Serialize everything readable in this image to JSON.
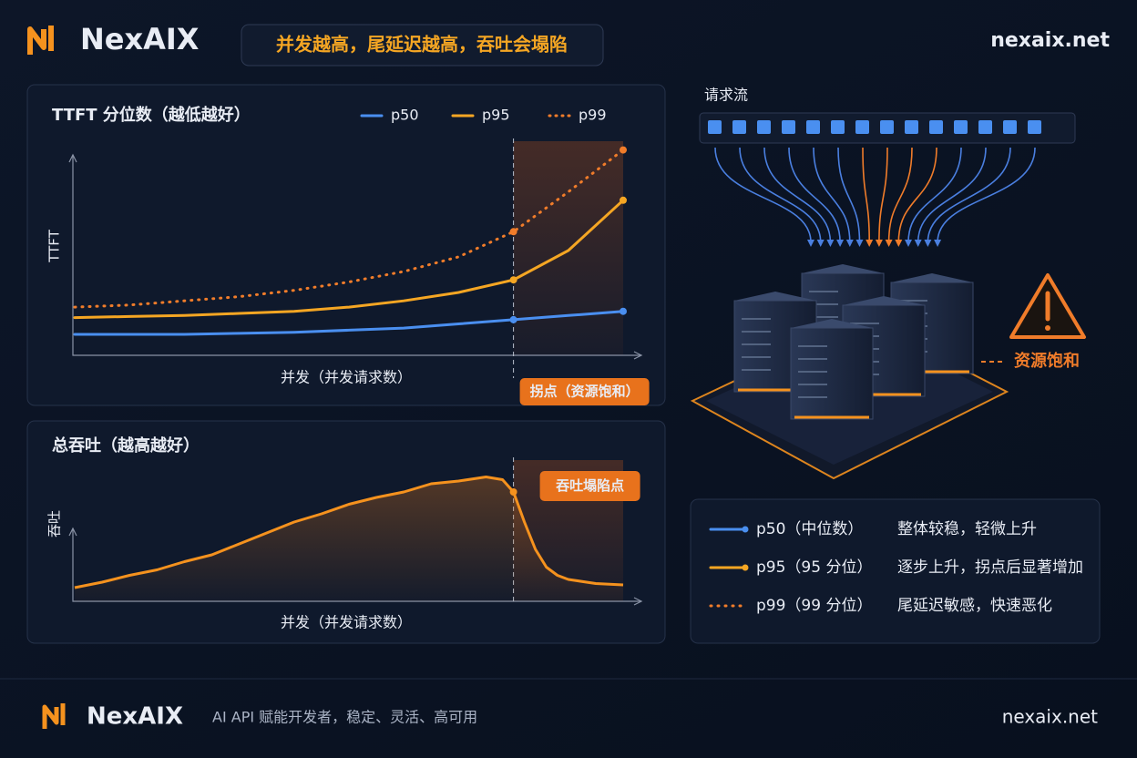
{
  "header": {
    "brand": "NexAIX",
    "headline": "并发越高，尾延迟越高，吞吐会塌陷",
    "site": "nexaix.net"
  },
  "chart_data": [
    {
      "type": "line",
      "title": "TTFT 分位数（越低越好）",
      "x_label": "并发（并发请求数）",
      "y_label": "TTFT",
      "x": [
        0,
        10,
        20,
        30,
        40,
        50,
        60,
        70,
        80,
        90,
        100
      ],
      "xlim": [
        0,
        100
      ],
      "ylim": [
        0,
        100
      ],
      "series": [
        {
          "name": "p50",
          "color": "#4a8ff0",
          "style": "solid",
          "values": [
            10,
            10,
            10,
            10.5,
            11,
            12,
            13,
            15,
            17,
            19,
            21
          ]
        },
        {
          "name": "p95",
          "color": "#f5a623",
          "style": "solid",
          "values": [
            18,
            18.5,
            19,
            20,
            21,
            23,
            26,
            30,
            36,
            50,
            74
          ]
        },
        {
          "name": "p99",
          "color": "#f07c2a",
          "style": "dotted",
          "values": [
            23,
            24,
            26,
            28,
            31,
            35,
            40,
            47,
            59,
            78,
            98
          ]
        }
      ],
      "knee_x": 80,
      "annotation": "拐点（资源饱和）"
    },
    {
      "type": "area",
      "title": "总吞吐（越高越好）",
      "x_label": "并发（并发请求数）",
      "y_label": "吞吐",
      "x": [
        0,
        5,
        10,
        15,
        20,
        25,
        30,
        35,
        40,
        45,
        50,
        55,
        60,
        65,
        70,
        75,
        78,
        80,
        82,
        84,
        86,
        88,
        90,
        95,
        100
      ],
      "values": [
        10,
        14,
        19,
        23,
        29,
        34,
        42,
        50,
        58,
        64,
        71,
        76,
        80,
        86,
        88,
        91,
        89,
        80,
        58,
        38,
        25,
        19,
        16,
        13,
        12
      ],
      "color": "#f5921e",
      "xlim": [
        0,
        100
      ],
      "ylim": [
        0,
        100
      ],
      "knee_x": 80,
      "annotation": "吞吐塌陷点"
    }
  ],
  "diagram": {
    "stream_label": "请求流",
    "warning": "资源饱和"
  },
  "legend_panel": {
    "rows": [
      {
        "name": "p50（中位数）",
        "desc": "整体较稳，轻微上升"
      },
      {
        "name": "p95（95 分位）",
        "desc": "逐步上升，拐点后显著增加"
      },
      {
        "name": "p99（99 分位）",
        "desc": "尾延迟敏感，快速恶化"
      }
    ]
  },
  "footer": {
    "brand": "NexAIX",
    "tagline": "AI API 赋能开发者，稳定、灵活、高可用",
    "site": "nexaix.net"
  }
}
